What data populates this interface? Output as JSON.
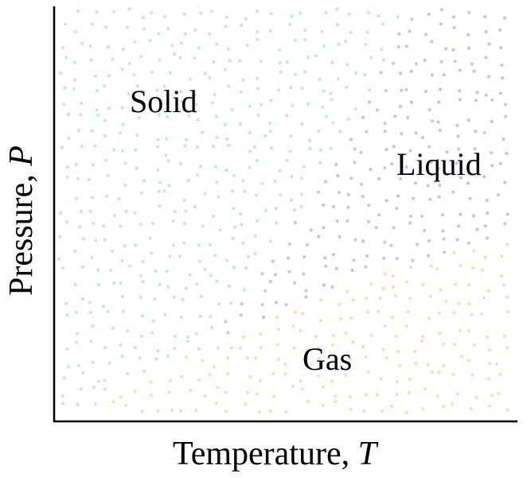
{
  "diagram": {
    "type": "phase-diagram",
    "regions": [
      {
        "key": "solid",
        "label": "Solid",
        "color": "#cfe3dc"
      },
      {
        "key": "liquid",
        "label": "Liquid",
        "color": "#c8c3df"
      },
      {
        "key": "gas",
        "label": "Gas",
        "color": "#f1dfc2"
      }
    ],
    "axes": {
      "x": {
        "label_text": "Temperature, ",
        "label_var": "T"
      },
      "y": {
        "label_text": "Pressure, ",
        "label_var": "P"
      }
    },
    "axis_color": "#000000"
  }
}
